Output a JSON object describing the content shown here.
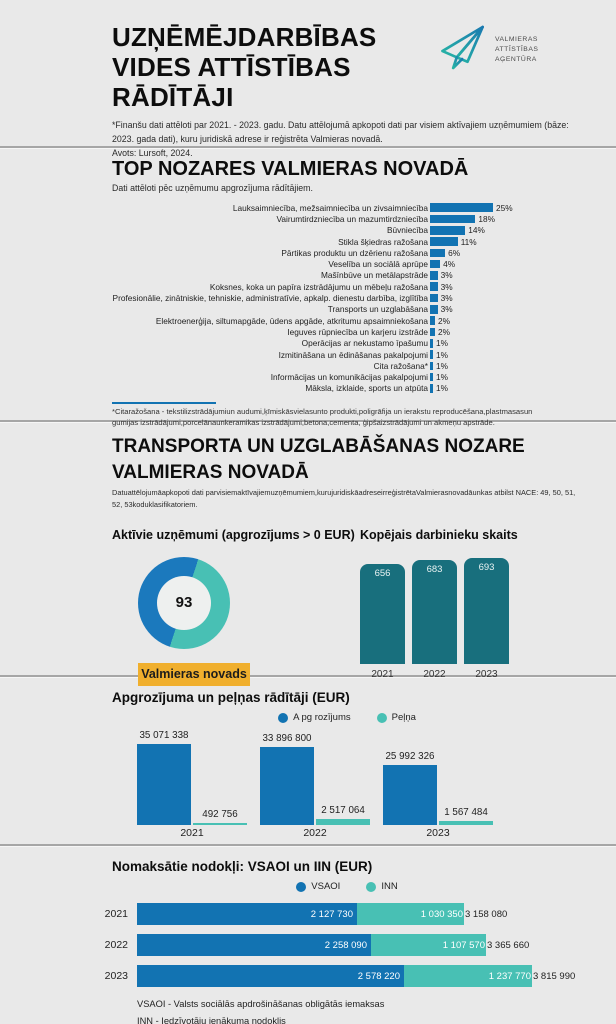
{
  "colors": {
    "blue": "#1273b2",
    "teal": "#48c0b4",
    "dark_teal": "#186f7d",
    "yellow": "#f0af2d",
    "background": "#e9e9e9"
  },
  "header": {
    "title_lines": [
      "UZŅĒMĒJDARBĪBAS",
      "VIDES ATTĪSTĪBAS",
      "RĀDĪTĀJI"
    ],
    "note": "*Finanšu dati attēloti par 2021. - 2023. gadu. Datu attēlojumā apkopoti dati par visiem aktīvajiem uzņēmumiem (bāze: 2023. gada dati), kuru juridiskā adrese ir reģistrēta Valmieras novadā.",
    "source": "Avots: Lursoft, 2024.",
    "logo_text_lines": [
      "VALMIERAS",
      "ATTĪSTĪBAS",
      "AĢENTŪRA"
    ]
  },
  "top_sectors": {
    "subtitle": "Dati attēloti pēc uzņēmumu apgrozījuma rādītājiem.",
    "footnote": "*Citaražošana - tekstilizstrādājumiun audumi,ķīmiskāsvielasunto produkti,poligrāfija un ierakstu reproducēšana,plastmasasun gumijas izstrādājumi,porcelānaunkeramikas izstrādājumi,betona,cementa, ģipšaizstrādājumi un akmeņu apstrāde."
  },
  "transport": {
    "title_lines": [
      "TRANSPORTA UN UZGLABĀŠANAS NOZARE",
      "VALMIERAS NOVADĀ"
    ],
    "subtitle": "Datuattēlojumāapkopoti dati parvisiemaktīvajiemuzņēmumiem,kurujuridiskāadreseirreģistrētaValmierasnovadāunkas atbilst NACE: 49, 50, 51, 52, 53koduklasifikatoriem."
  },
  "taxes": {
    "footnotes": [
      "VSAOI - Valsts sociālās apdrošināšanas obligātās iemaksas",
      "INN - Iedzīvotāju ienākuma nodoklis"
    ]
  },
  "chart_data": [
    {
      "id": "top_sectors",
      "type": "bar",
      "orientation": "horizontal",
      "title": "TOP NOZARES VALMIERAS NOVADĀ",
      "unit": "%",
      "xlim": [
        0,
        25
      ],
      "categories": [
        "Lauksaimniecība, mežsaimniecība un zivsaimniecība",
        "Vairumtirdzniecība un mazumtirdzniecība",
        "Būvniecība",
        "Stikla šķiedras ražošana",
        "Pārtikas produktu un dzērienu ražošana",
        "Veselība un sociālā aprūpe",
        "Mašīnbūve un metālapstrāde",
        "Koksnes, koka un papīra izstrādājumu un mēbeļu ražošana",
        "Profesionālie, zinātniskie, tehniskie, administratīvie, apkalp. dienestu darbība, izglītība",
        "Transports un uzglabāšana",
        "Elektroenerģija, siltumapgāde, ūdens apgāde, atkritumu apsaimniekošana",
        "Ieguves rūpniecība un karjeru izstrāde",
        "Operācijas ar nekustamo īpašumu",
        "Izmitināšana un ēdināšanas pakalpojumi",
        "Cita ražošana*",
        "Informācijas un komunikācijas pakalpojumi",
        "Māksla, izklaide, sports un atpūta"
      ],
      "values": [
        25,
        18,
        14,
        11,
        6,
        4,
        3,
        3,
        3,
        3,
        2,
        2,
        1,
        1,
        1,
        1,
        1
      ]
    },
    {
      "id": "active_companies",
      "type": "pie",
      "title": "Aktīvie uzņēmumi (apgrozījums > 0 EUR)",
      "center_value": "93",
      "label": "Valmieras novads",
      "slices": [
        {
          "name": "teal-segment",
          "fraction": 0.5,
          "color": "#48c0b4"
        },
        {
          "name": "blue-segment",
          "fraction": 0.5,
          "color": "#1b79bd"
        }
      ]
    },
    {
      "id": "employees",
      "type": "bar",
      "title": "Kopējais darbinieku skaits",
      "categories": [
        "2021",
        "2022",
        "2023"
      ],
      "values": [
        656,
        683,
        693
      ]
    },
    {
      "id": "turnover_profit",
      "type": "bar",
      "title": "Apgrozījuma un peļņas rādītāji (EUR)",
      "categories": [
        "2021",
        "2022",
        "2023"
      ],
      "legend_position": "top",
      "series": [
        {
          "name": "A pg rozījums",
          "color": "#1273b2",
          "values": [
            35071338,
            33896800,
            25992326
          ],
          "labels": [
            "35 071 338",
            "33 896 800",
            "25 992 326"
          ]
        },
        {
          "name": "Peļņa",
          "color": "#48c0b4",
          "values": [
            492756,
            2517064,
            1567484
          ],
          "labels": [
            "492 756",
            "2 517 064",
            "1 567 484"
          ]
        }
      ]
    },
    {
      "id": "taxes",
      "type": "bar",
      "stacked": true,
      "orientation": "horizontal",
      "title": "Nomaksātie nodokļi: VSAOI un IIN (EUR)",
      "categories": [
        "2021",
        "2022",
        "2023"
      ],
      "legend_position": "top",
      "series": [
        {
          "name": "VSAOI",
          "color": "#1273b2",
          "values": [
            2127730,
            2258090,
            2578220
          ],
          "labels": [
            "2 127 730",
            "2 258 090",
            "2 578 220"
          ]
        },
        {
          "name": "INN",
          "color": "#48c0b4",
          "values": [
            1030350,
            1107570,
            1237770
          ],
          "labels": [
            "1 030 350",
            "1 107 570",
            "1 237 770"
          ]
        }
      ],
      "totals": [
        3158080,
        3365660,
        3815990
      ],
      "total_labels": [
        "3 158 080",
        "3 365 660",
        "3 815 990"
      ]
    }
  ]
}
